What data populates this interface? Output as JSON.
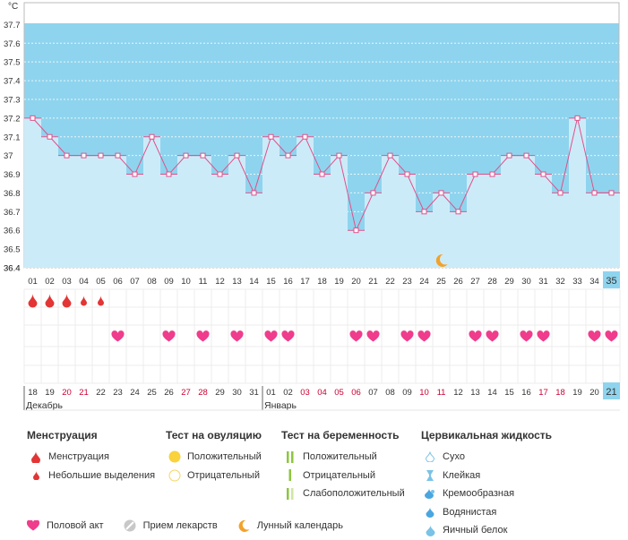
{
  "chart_data": {
    "type": "line",
    "title": "",
    "ylabel": "°C",
    "ylim": [
      36.4,
      37.8
    ],
    "yticks": [
      "37.7",
      "37.6",
      "37.5",
      "37.4",
      "37.3",
      "37.2",
      "37.1",
      "37",
      "36.9",
      "36.8",
      "36.7",
      "36.6",
      "36.5",
      "36.4"
    ],
    "cycle_days": [
      "01",
      "02",
      "03",
      "04",
      "05",
      "06",
      "07",
      "08",
      "09",
      "10",
      "11",
      "12",
      "13",
      "14",
      "15",
      "16",
      "17",
      "18",
      "19",
      "20",
      "21",
      "22",
      "23",
      "24",
      "25",
      "26",
      "27",
      "28",
      "29",
      "30",
      "31",
      "32",
      "33",
      "34",
      "35"
    ],
    "values": [
      37.2,
      37.1,
      37.0,
      37.0,
      37.0,
      37.0,
      36.9,
      37.1,
      36.9,
      37.0,
      37.0,
      36.9,
      37.0,
      36.8,
      37.1,
      37.0,
      37.1,
      36.9,
      37.0,
      36.6,
      36.8,
      37.0,
      36.9,
      36.7,
      36.8,
      36.7,
      36.9,
      36.9,
      37.0,
      37.0,
      36.9,
      36.8,
      37.2,
      36.8,
      36.8
    ],
    "current_day": "35",
    "calendar_dates": [
      "18",
      "19",
      "20",
      "21",
      "22",
      "23",
      "24",
      "25",
      "26",
      "27",
      "28",
      "29",
      "30",
      "31",
      "01",
      "02",
      "03",
      "04",
      "05",
      "06",
      "07",
      "08",
      "09",
      "10",
      "11",
      "12",
      "13",
      "14",
      "15",
      "16",
      "17",
      "18",
      "19",
      "20",
      "21"
    ],
    "weekend_indices": [
      2,
      3,
      9,
      10,
      16,
      17,
      18,
      19,
      23,
      24,
      30,
      31
    ],
    "month_labels": [
      {
        "label": "Декабрь",
        "index": 0
      },
      {
        "label": "Январь",
        "index": 14
      }
    ],
    "menstruation": [
      {
        "day": 1,
        "kind": "heavy"
      },
      {
        "day": 2,
        "kind": "heavy"
      },
      {
        "day": 3,
        "kind": "heavy"
      },
      {
        "day": 4,
        "kind": "light"
      },
      {
        "day": 5,
        "kind": "light"
      }
    ],
    "intercourse_days": [
      6,
      9,
      11,
      13,
      15,
      16,
      20,
      21,
      23,
      24,
      27,
      28,
      30,
      31,
      34,
      35
    ],
    "moon_days": [
      25
    ],
    "colors": {
      "high": "#8fd4ee",
      "low": "#ccebf9",
      "line": "#e0508a",
      "menstruation": "#e33535",
      "heart": "#f03c8c",
      "moon": "#f2a22a",
      "weekend": "#cc0033",
      "current": "#8fd4ee"
    }
  },
  "legend": {
    "menstruation": {
      "title": "Менструация",
      "items": [
        "Менструация",
        "Небольшие выделения"
      ]
    },
    "ovulation": {
      "title": "Тест на овуляцию",
      "items": [
        "Положительный",
        "Отрицательный"
      ]
    },
    "pregnancy": {
      "title": "Тест на беременность",
      "items": [
        "Положительный",
        "Отрицательный",
        "Слабоположительный"
      ]
    },
    "cervical": {
      "title": "Цервикальная жидкость",
      "items": [
        "Сухо",
        "Клейкая",
        "Кремообразная",
        "Водянистая",
        "Яичный белок"
      ]
    },
    "bottom": [
      "Половой акт",
      "Прием лекарств",
      "Лунный календарь"
    ]
  }
}
